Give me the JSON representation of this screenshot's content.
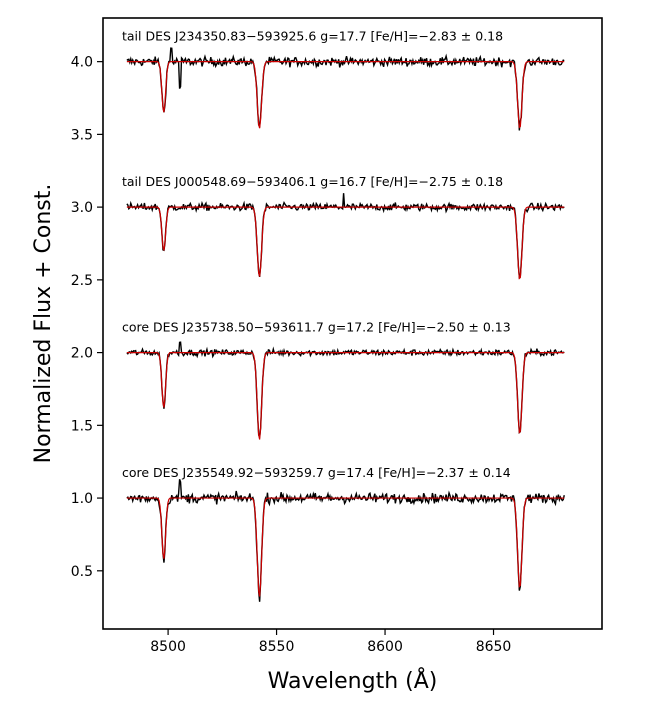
{
  "chart_data": {
    "type": "line",
    "xlabel": "Wavelength (Å)",
    "ylabel": "Normalized Flux + Const.",
    "xlim": [
      8470,
      8700
    ],
    "ylim": [
      0.1,
      4.3
    ],
    "xticks": [
      8500,
      8550,
      8600,
      8650
    ],
    "yticks": [
      0.5,
      1.0,
      1.5,
      2.0,
      2.5,
      3.0,
      3.5,
      4.0
    ],
    "x_range": [
      8481,
      8683
    ],
    "colors": {
      "observed": "#000000",
      "model": "#cc0000"
    },
    "spectra": [
      {
        "label": "tail DES J234350.83−593925.6  g=17.7  [Fe/H]=−2.83 ± 0.18",
        "offset": 4.0,
        "noise": 0.022,
        "lines": [
          {
            "x": 8498.0,
            "depth": 0.35,
            "width": 0.85
          },
          {
            "x": 8542.1,
            "depth": 0.46,
            "width": 1.0
          },
          {
            "x": 8662.1,
            "depth": 0.46,
            "width": 1.0
          }
        ],
        "spikes": [
          {
            "x": 8505.5,
            "dy": -0.18
          },
          {
            "x": 8501.5,
            "dy": 0.09
          }
        ]
      },
      {
        "label": "tail DES J000548.69−593406.1  g=16.7  [Fe/H]=−2.75 ± 0.18",
        "offset": 3.0,
        "noise": 0.018,
        "lines": [
          {
            "x": 8498.0,
            "depth": 0.3,
            "width": 0.85
          },
          {
            "x": 8542.1,
            "depth": 0.48,
            "width": 1.0
          },
          {
            "x": 8662.1,
            "depth": 0.5,
            "width": 1.0
          }
        ],
        "spikes": [
          {
            "x": 8581.0,
            "dy": 0.1
          }
        ]
      },
      {
        "label": "core  DES J235738.50−593611.7  g=17.2  [Fe/H]=−2.50 ± 0.13",
        "offset": 2.0,
        "noise": 0.015,
        "lines": [
          {
            "x": 8498.0,
            "depth": 0.38,
            "width": 0.85
          },
          {
            "x": 8542.1,
            "depth": 0.6,
            "width": 1.0
          },
          {
            "x": 8662.1,
            "depth": 0.56,
            "width": 1.0
          }
        ],
        "spikes": [
          {
            "x": 8505.5,
            "dy": 0.07
          }
        ]
      },
      {
        "label": "core  DES J235549.92−593259.7  g=17.4  [Fe/H]=−2.37 ± 0.14",
        "offset": 1.0,
        "noise": 0.024,
        "lines": [
          {
            "x": 8498.0,
            "depth": 0.42,
            "width": 0.85
          },
          {
            "x": 8542.1,
            "depth": 0.68,
            "width": 1.0
          },
          {
            "x": 8662.1,
            "depth": 0.62,
            "width": 1.0
          }
        ],
        "spikes": [
          {
            "x": 8505.5,
            "dy": 0.12
          }
        ]
      }
    ]
  }
}
